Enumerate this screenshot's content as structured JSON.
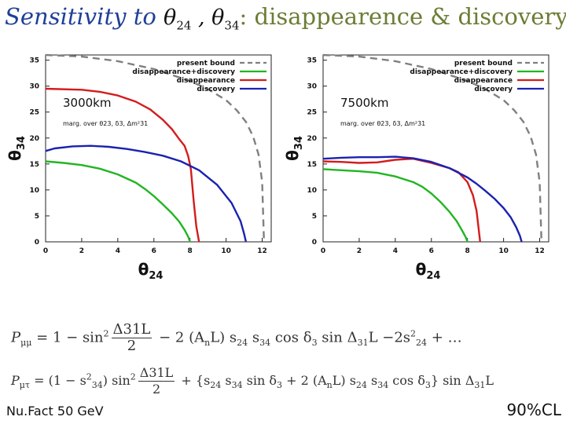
{
  "title": {
    "prefix": "Sensitivity to ",
    "theta": "θ",
    "sub1": "24",
    "comma": " , ",
    "sub2": "34",
    "suffix": ": disappearence & discovery"
  },
  "footer": {
    "left": "Nu.Fact 50 GeV",
    "right": "90%CL"
  },
  "equations": {
    "eq1": {
      "lhs": "P",
      "lhs_sub": "μμ",
      "part1": " = 1 − sin",
      "sup1": "2",
      "frac_num": "Δ31L",
      "frac_den": "2",
      "part2": " − 2 (A",
      "part2_sub": "n",
      "part3": "L) s",
      "part3_sub": "24",
      "part4": " s",
      "part4_sub": "34",
      "part5": " cos δ",
      "part5_sub": "3",
      "part6": " sin Δ",
      "part6_sub": "31",
      "part7": "L −2s",
      "part7_sup": "2",
      "part7_sub": "24",
      "part8": " + …"
    },
    "eq2": {
      "lhs": "P",
      "lhs_sub": "μτ",
      "part1": " = (1 − s",
      "sup1": "2",
      "sub1": "34",
      "part2": ") sin",
      "sup2": "2",
      "frac_num": "Δ31L",
      "frac_den": "2",
      "part3": " + {s",
      "part3_sub": "24",
      "part4": " s",
      "part4_sub": "34",
      "part5": " sin δ",
      "part5_sub": "3",
      "part6": " + 2 (A",
      "part6_sub": "n",
      "part7": "L) s",
      "part7_sub": "24",
      "part8": " s",
      "part8_sub": "34",
      "part9": " cos δ",
      "part9_sub": "3",
      "part10": "} sin Δ",
      "part10_sub": "31",
      "part11": "L"
    }
  },
  "chart_data": [
    {
      "type": "line",
      "annotation": "3000km",
      "marg_label": "marg. over θ23, δ3, Δm²31",
      "xlabel": "θ24",
      "ylabel": "θ34",
      "xlim": [
        0,
        12.5
      ],
      "ylim": [
        0,
        36
      ],
      "xticks": [
        "0",
        "2",
        "4",
        "6",
        "8",
        "10",
        "12"
      ],
      "yticks": [
        "0",
        "5",
        "10",
        "15",
        "20",
        "25",
        "30",
        "35"
      ],
      "legend_position": "top-right",
      "series": [
        {
          "name": "present bound",
          "color": "#808080",
          "dash": true,
          "x": [
            0,
            2,
            4,
            6,
            8,
            9,
            10,
            10.6,
            11.1,
            11.5,
            11.8,
            12.0,
            12.1
          ],
          "y": [
            36,
            35.7,
            34.8,
            33.3,
            31.0,
            29.4,
            27.3,
            25.3,
            23.1,
            20.3,
            16.8,
            11.5,
            0
          ]
        },
        {
          "name": "disappearance+discovery",
          "color": "#22b522",
          "dash": false,
          "x": [
            0,
            1,
            2,
            3,
            4,
            5,
            5.5,
            6,
            6.5,
            7,
            7.4,
            7.7,
            7.9,
            8.0
          ],
          "y": [
            15.5,
            15.2,
            14.8,
            14.1,
            13.0,
            11.4,
            10.2,
            8.8,
            7.2,
            5.5,
            3.9,
            2.3,
            1.0,
            0
          ]
        },
        {
          "name": "disappearance",
          "color": "#d41c1c",
          "dash": false,
          "x": [
            0,
            2,
            3,
            4,
            5,
            5.8,
            6.5,
            7,
            7.4,
            7.7,
            7.9,
            8.05,
            8.2,
            8.35,
            8.5
          ],
          "y": [
            29.5,
            29.3,
            28.9,
            28.2,
            27.0,
            25.5,
            23.5,
            21.7,
            19.8,
            18.5,
            16.5,
            14.0,
            8.0,
            3.0,
            0
          ]
        },
        {
          "name": "discovery",
          "color": "#1a22b0",
          "dash": false,
          "x": [
            0,
            0.5,
            1.5,
            2.5,
            3.5,
            4.5,
            5.5,
            6.5,
            7.5,
            8.5,
            9.5,
            10.3,
            10.8,
            11.0,
            11.1
          ],
          "y": [
            17.5,
            18.0,
            18.4,
            18.5,
            18.3,
            17.9,
            17.3,
            16.6,
            15.5,
            13.8,
            11.0,
            7.5,
            4.0,
            1.5,
            0
          ]
        }
      ]
    },
    {
      "type": "line",
      "annotation": "7500km",
      "marg_label": "marg. over θ23, δ3, Δm²31",
      "xlabel": "θ24",
      "ylabel": "θ34",
      "xlim": [
        0,
        12.5
      ],
      "ylim": [
        0,
        36
      ],
      "xticks": [
        "0",
        "2",
        "4",
        "6",
        "8",
        "10",
        "12"
      ],
      "yticks": [
        "0",
        "5",
        "10",
        "15",
        "20",
        "25",
        "30",
        "35"
      ],
      "legend_position": "top-right",
      "series": [
        {
          "name": "present bound",
          "color": "#808080",
          "dash": true,
          "x": [
            0,
            2,
            4,
            6,
            8,
            9,
            10,
            10.6,
            11.1,
            11.5,
            11.8,
            12.0,
            12.1
          ],
          "y": [
            36,
            35.7,
            34.8,
            33.3,
            31.0,
            29.4,
            27.3,
            25.3,
            23.1,
            20.3,
            16.8,
            11.5,
            0
          ]
        },
        {
          "name": "disappearance+discovery",
          "color": "#22b522",
          "dash": false,
          "x": [
            0,
            1,
            2,
            3,
            4,
            5,
            5.5,
            6,
            6.5,
            7,
            7.4,
            7.7,
            7.9,
            8.0
          ],
          "y": [
            14.0,
            13.8,
            13.6,
            13.3,
            12.6,
            11.5,
            10.6,
            9.3,
            7.7,
            5.8,
            4.0,
            2.2,
            0.9,
            0
          ]
        },
        {
          "name": "disappearance",
          "color": "#d41c1c",
          "dash": false,
          "x": [
            0,
            1,
            2,
            3,
            4,
            5,
            6,
            7,
            7.5,
            8.0,
            8.3,
            8.5,
            8.6,
            8.7
          ],
          "y": [
            15.5,
            15.4,
            15.2,
            15.3,
            15.8,
            16.0,
            15.2,
            14.2,
            13.4,
            11.5,
            9.0,
            6.0,
            3.0,
            0
          ]
        },
        {
          "name": "discovery",
          "color": "#1a22b0",
          "dash": false,
          "x": [
            0,
            1,
            2,
            3,
            4,
            5,
            6,
            7,
            8,
            8.5,
            9.0,
            9.5,
            10.0,
            10.4,
            10.7,
            10.9,
            11.0
          ],
          "y": [
            16.0,
            16.2,
            16.3,
            16.3,
            16.4,
            16.1,
            15.4,
            14.2,
            12.4,
            11.2,
            9.8,
            8.3,
            6.5,
            4.7,
            2.8,
            1.2,
            0
          ]
        }
      ]
    }
  ]
}
